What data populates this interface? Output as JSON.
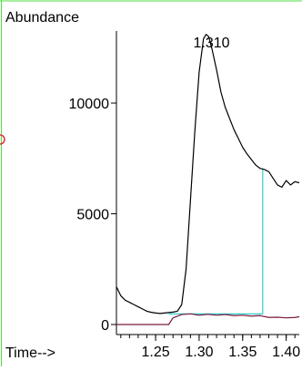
{
  "colors": {
    "background": "#ffffff",
    "frame": "#55dd44",
    "axis": "#000000",
    "tic_signal": "#000000",
    "baseline_trace": "#7a1a3a",
    "integration_marker": "#33cccc",
    "indicator_circle": "#dd3333"
  },
  "chart_data": {
    "type": "line",
    "title": "",
    "ylabel": "Abundance",
    "xlabel": "Time-->",
    "ylim": [
      0,
      13500
    ],
    "xlim": [
      1.205,
      1.415
    ],
    "y_ticks": [
      {
        "value": 0,
        "label": "0"
      },
      {
        "value": 5000,
        "label": "5000"
      },
      {
        "value": 10000,
        "label": "10000"
      }
    ],
    "x_ticks": [
      {
        "value": 1.25,
        "label": "1.25"
      },
      {
        "value": 1.3,
        "label": "1.30"
      },
      {
        "value": 1.35,
        "label": "1.35"
      },
      {
        "value": 1.4,
        "label": "1.40"
      }
    ],
    "peak_label": {
      "text": "1.310",
      "x": 1.31,
      "y": 13100
    },
    "series": [
      {
        "color_key": "tic_signal",
        "points": [
          [
            1.205,
            1700
          ],
          [
            1.21,
            1300
          ],
          [
            1.215,
            1100
          ],
          [
            1.22,
            1000
          ],
          [
            1.225,
            900
          ],
          [
            1.23,
            800
          ],
          [
            1.235,
            700
          ],
          [
            1.24,
            600
          ],
          [
            1.245,
            550
          ],
          [
            1.25,
            520
          ],
          [
            1.255,
            500
          ],
          [
            1.26,
            520
          ],
          [
            1.265,
            540
          ],
          [
            1.27,
            560
          ],
          [
            1.275,
            600
          ],
          [
            1.28,
            900
          ],
          [
            1.285,
            2500
          ],
          [
            1.29,
            5600
          ],
          [
            1.295,
            8700
          ],
          [
            1.3,
            11400
          ],
          [
            1.305,
            12900
          ],
          [
            1.308,
            13100
          ],
          [
            1.311,
            13000
          ],
          [
            1.315,
            12400
          ],
          [
            1.32,
            11500
          ],
          [
            1.325,
            10500
          ],
          [
            1.33,
            9800
          ],
          [
            1.335,
            9300
          ],
          [
            1.34,
            8800
          ],
          [
            1.345,
            8400
          ],
          [
            1.35,
            8000
          ],
          [
            1.355,
            7700
          ],
          [
            1.36,
            7450
          ],
          [
            1.365,
            7200
          ],
          [
            1.37,
            7050
          ],
          [
            1.375,
            7000
          ],
          [
            1.38,
            6900
          ],
          [
            1.385,
            6600
          ],
          [
            1.39,
            6300
          ],
          [
            1.395,
            6200
          ],
          [
            1.4,
            6500
          ],
          [
            1.405,
            6300
          ],
          [
            1.41,
            6450
          ],
          [
            1.415,
            6400
          ]
        ]
      },
      {
        "color_key": "baseline_trace",
        "points": [
          [
            1.205,
            0
          ],
          [
            1.265,
            0
          ],
          [
            1.27,
            300
          ],
          [
            1.28,
            450
          ],
          [
            1.29,
            480
          ],
          [
            1.3,
            420
          ],
          [
            1.31,
            460
          ],
          [
            1.32,
            420
          ],
          [
            1.33,
            450
          ],
          [
            1.34,
            400
          ],
          [
            1.35,
            420
          ],
          [
            1.36,
            380
          ],
          [
            1.37,
            400
          ],
          [
            1.38,
            320
          ],
          [
            1.39,
            330
          ],
          [
            1.4,
            300
          ],
          [
            1.41,
            320
          ],
          [
            1.415,
            350
          ]
        ]
      }
    ],
    "integration_marker": {
      "x_start": 1.265,
      "x_end": 1.373,
      "baseline": 480,
      "top": 7050
    }
  }
}
